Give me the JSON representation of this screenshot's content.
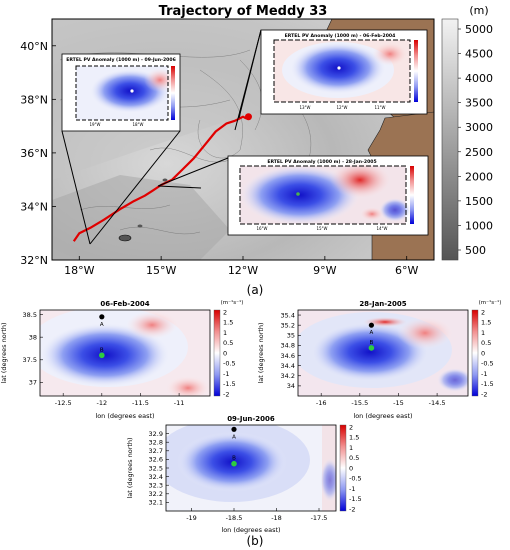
{
  "chart_data": [
    {
      "type": "map",
      "title": "Trajectory of Meddy 33",
      "x_ticks": [
        "18°W",
        "15°W",
        "12°W",
        "9°W",
        "6°W"
      ],
      "y_ticks": [
        "32°N",
        "34°N",
        "36°N",
        "38°N",
        "40°N"
      ],
      "xlim": [
        -19,
        -5
      ],
      "ylim": [
        32,
        41
      ],
      "colorbar": {
        "title": "(m)",
        "ticks": [
          "5000",
          "4500",
          "4000",
          "3500",
          "3000",
          "2500",
          "2000",
          "1500",
          "1000",
          "500"
        ]
      },
      "trajectory": {
        "lon": [
          -18.2,
          -18.0,
          -17.6,
          -17.1,
          -16.5,
          -16.0,
          -15.6,
          -15.3,
          -15.0,
          -14.6,
          -14.2,
          -13.8,
          -13.4,
          -13.0,
          -12.6,
          -12.3,
          -12.1,
          -12.0,
          -11.9,
          -11.8
        ],
        "lat": [
          32.7,
          33.0,
          33.2,
          33.5,
          33.9,
          34.2,
          34.4,
          34.6,
          34.8,
          35.0,
          35.4,
          35.8,
          36.3,
          36.8,
          37.1,
          37.2,
          37.3,
          37.35,
          37.3,
          37.35
        ]
      },
      "insets": [
        {
          "title": "ERTEL PV Anomaly (1000 m) - 09-Jun-2006",
          "x_ticks": [
            "19°W",
            "18°W"
          ],
          "cbar_ticks": [
            "1",
            "0.5",
            "0",
            "-0.5",
            "-1",
            "-1.5"
          ]
        },
        {
          "title": "ERTEL PV Anomaly (1000 m) - 06-Feb-2004",
          "x_ticks": [
            "13°W",
            "12°W",
            "11°W"
          ],
          "cbar_ticks": [
            "1",
            "0.5",
            "0",
            "-0.5",
            "-1",
            "-1.5"
          ]
        },
        {
          "title": "ERTEL PV Anomaly (1000 m) - 28-Jan-2005",
          "x_ticks": [
            "16°W",
            "15°W",
            "14°W"
          ],
          "cbar_ticks": [
            "1",
            "0.5",
            "0",
            "-0.5",
            "-1",
            "-1.5"
          ]
        }
      ]
    },
    {
      "type": "heatmap",
      "title": "06-Feb-2004",
      "xlabel": "lon (degrees east)",
      "ylabel": "lat (degrees north)",
      "xlim": [
        -12.8,
        -10.6
      ],
      "ylim": [
        36.7,
        38.6
      ],
      "x_ticks": [
        -12.5,
        -12,
        -11.5,
        -11
      ],
      "y_ticks": [
        37,
        37.5,
        38,
        38.5
      ],
      "cbar_unit": "(m⁻¹s⁻¹)",
      "cbar_ticks": [
        2,
        1.5,
        1,
        0.5,
        0,
        -0.5,
        -1,
        -1.5,
        -2
      ],
      "points": {
        "A": [
          -12.0,
          38.45
        ],
        "B": [
          -12.0,
          37.6
        ]
      }
    },
    {
      "type": "heatmap",
      "title": "28-Jan-2005",
      "xlabel": "lon (degrees east)",
      "ylabel": "lat (degrees north)",
      "xlim": [
        -16.3,
        -14.1
      ],
      "ylim": [
        33.8,
        35.5
      ],
      "x_ticks": [
        -16,
        -15.5,
        -15,
        -14.5
      ],
      "y_ticks": [
        34,
        34.2,
        34.4,
        34.6,
        34.8,
        35,
        35.2,
        35.4
      ],
      "cbar_unit": "(m⁻¹s⁻¹)",
      "cbar_ticks": [
        2,
        1.5,
        1,
        0.5,
        0,
        -0.5,
        -1,
        -1.5,
        -2
      ],
      "points": {
        "A": [
          -15.35,
          35.2
        ],
        "B": [
          -15.35,
          34.75
        ]
      }
    },
    {
      "type": "heatmap",
      "title": "09-Jun-2006",
      "xlabel": "lon (degrees east)",
      "ylabel": "lat (degrees north)",
      "xlim": [
        -19.3,
        -17.3
      ],
      "ylim": [
        32.0,
        33.0
      ],
      "x_ticks": [
        -19,
        -18.5,
        -18,
        -17.5
      ],
      "y_ticks": [
        32.1,
        32.2,
        32.3,
        32.4,
        32.5,
        32.6,
        32.7,
        32.8,
        32.9
      ],
      "cbar_unit": "(m⁻¹s⁻¹)",
      "cbar_ticks": [
        2,
        1.5,
        1,
        0.5,
        0,
        -0.5,
        -1,
        -1.5,
        -2
      ],
      "points": {
        "A": [
          -18.5,
          32.95
        ],
        "B": [
          -18.5,
          32.55
        ]
      }
    }
  ],
  "panel_labels": [
    "(a)",
    "(b)"
  ]
}
